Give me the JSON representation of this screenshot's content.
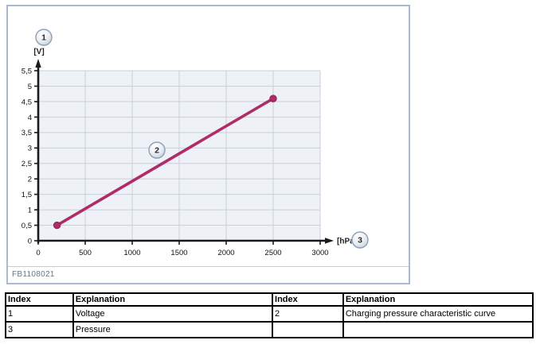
{
  "figure": {
    "id_label": "FB1108021",
    "callouts": [
      {
        "label": "1"
      },
      {
        "label": "2"
      },
      {
        "label": "3"
      }
    ]
  },
  "chart_data": {
    "type": "line",
    "title": "",
    "xlabel": "[hPa]",
    "ylabel": "[V]",
    "xlim": [
      0,
      3000
    ],
    "ylim": [
      0,
      5.5
    ],
    "x_ticks": [
      0,
      500,
      1000,
      1500,
      2000,
      2500,
      3000
    ],
    "x_tick_labels": [
      "0",
      "500",
      "1000",
      "1500",
      "2000",
      "2500",
      "3000"
    ],
    "y_ticks": [
      0,
      0.5,
      1,
      1.5,
      2,
      2.5,
      3,
      3.5,
      4,
      4.5,
      5,
      5.5
    ],
    "y_tick_labels": [
      "0",
      "0,5",
      "1",
      "1,5",
      "2",
      "2,5",
      "3",
      "3,5",
      "4",
      "4,5",
      "5",
      "5,5"
    ],
    "grid": true,
    "legend_position": "none",
    "series": [
      {
        "name": "Charging pressure characteristic curve",
        "points": [
          [
            200,
            0.5
          ],
          [
            2500,
            4.6
          ]
        ],
        "color": "#b02c68"
      }
    ]
  },
  "colors": {
    "figure_border": "#a9bad4",
    "plot_background": "#eef1f6",
    "gridline": "#c9d0dc",
    "axis": "#1a1a1a",
    "curve": "#b02c68",
    "curve_dot_stroke": "#8d2150",
    "callout_edge": "#8fa0b6",
    "callout_fill_edge": "#bfcbda",
    "figure_id_text": "#64788e"
  },
  "table": {
    "columns": [
      "Index",
      "Explanation",
      "Index",
      "Explanation"
    ],
    "rows": [
      [
        "1",
        "Voltage",
        "2",
        "Charging pressure characteristic curve"
      ],
      [
        "3",
        "Pressure",
        "",
        ""
      ]
    ]
  }
}
